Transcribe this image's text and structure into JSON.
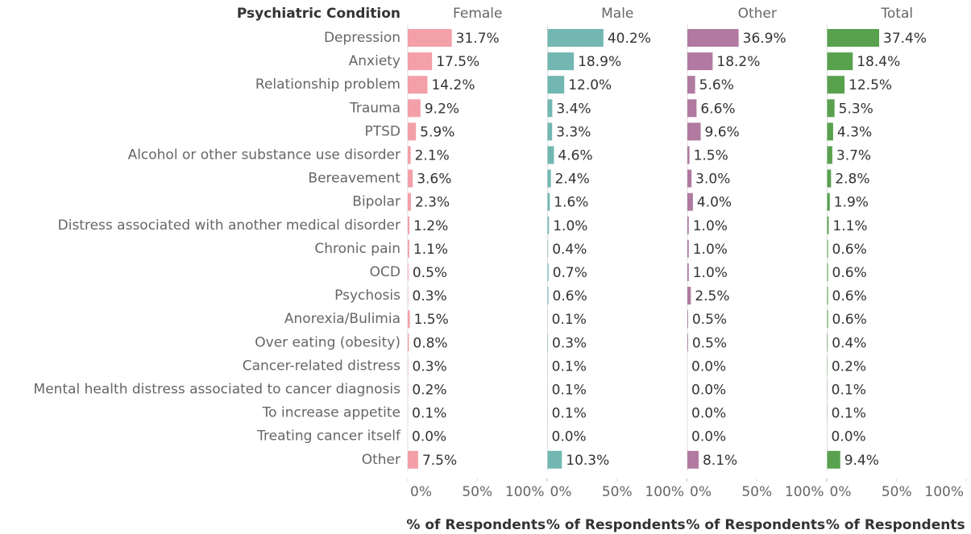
{
  "chart_data": {
    "type": "bar",
    "orientation": "horizontal",
    "category_header": "Psychiatric Condition",
    "categories": [
      "Depression",
      "Anxiety",
      "Relationship problem",
      "Trauma",
      "PTSD",
      "Alcohol or other substance use disorder",
      "Bereavement",
      "Bipolar",
      "Distress associated with another medical disorder",
      "Chronic pain",
      "OCD",
      "Psychosis",
      "Anorexia/Bulimia",
      "Over eating (obesity)",
      "Cancer-related distress",
      "Mental health distress associated to cancer diagnosis",
      "To increase appetite",
      "Treating cancer itself",
      "Other"
    ],
    "series": [
      {
        "name": "Female",
        "color": "#f4a0a8",
        "values": [
          31.7,
          17.5,
          14.2,
          9.2,
          5.9,
          2.1,
          3.6,
          2.3,
          1.2,
          1.1,
          0.5,
          0.3,
          1.5,
          0.8,
          0.3,
          0.2,
          0.1,
          0,
          7.5
        ],
        "value_labels": [
          "31.7%",
          "17.5%",
          "14.2%",
          "9.2%",
          "5.9%",
          "2.1%",
          "3.6%",
          "2.3%",
          "1.2%",
          "1.1%",
          "0.5%",
          "0.3%",
          "1.5%",
          "0.8%",
          "0.3%",
          "0.2%",
          "0.1%",
          "0.0%",
          "7.5%"
        ]
      },
      {
        "name": "Male",
        "color": "#72b7b2",
        "values": [
          40.2,
          18.9,
          12,
          3.4,
          3.3,
          4.6,
          2.4,
          1.6,
          1,
          0.4,
          0.7,
          0.6,
          0.1,
          0.3,
          0.1,
          0.1,
          0.1,
          0,
          10.3
        ],
        "value_labels": [
          "40.2%",
          "18.9%",
          "12.0%",
          "3.4%",
          "3.3%",
          "4.6%",
          "2.4%",
          "1.6%",
          "1.0%",
          "0.4%",
          "0.7%",
          "0.6%",
          "0.1%",
          "0.3%",
          "0.1%",
          "0.1%",
          "0.1%",
          "0.0%",
          "10.3%"
        ]
      },
      {
        "name": "Other",
        "color": "#b07aa1",
        "values": [
          36.9,
          18.2,
          5.6,
          6.6,
          9.6,
          1.5,
          3,
          4,
          1,
          1,
          1,
          2.5,
          0.5,
          0.5,
          0,
          0,
          0,
          0,
          8.1
        ],
        "value_labels": [
          "36.9%",
          "18.2%",
          "5.6%",
          "6.6%",
          "9.6%",
          "1.5%",
          "3.0%",
          "4.0%",
          "1.0%",
          "1.0%",
          "1.0%",
          "2.5%",
          "0.5%",
          "0.5%",
          "0.0%",
          "0.0%",
          "0.0%",
          "0.0%",
          "8.1%"
        ]
      },
      {
        "name": "Total",
        "color": "#59a14f",
        "values": [
          37.4,
          18.4,
          12.5,
          5.3,
          4.3,
          3.7,
          2.8,
          1.9,
          1.1,
          0.6,
          0.6,
          0.6,
          0.6,
          0.4,
          0.2,
          0.1,
          0.1,
          0,
          9.4
        ],
        "value_labels": [
          "37.4%",
          "18.4%",
          "12.5%",
          "5.3%",
          "4.3%",
          "3.7%",
          "2.8%",
          "1.9%",
          "1.1%",
          "0.6%",
          "0.6%",
          "0.6%",
          "0.6%",
          "0.4%",
          "0.2%",
          "0.1%",
          "0.1%",
          "0.0%",
          "9.4%"
        ]
      }
    ],
    "xlabel": "% of Respondents",
    "xlim": [
      0,
      100
    ],
    "xticks": [
      {
        "value": 0,
        "label": "0%"
      },
      {
        "value": 50,
        "label": "50%"
      },
      {
        "value": 100,
        "label": "100%"
      }
    ]
  }
}
